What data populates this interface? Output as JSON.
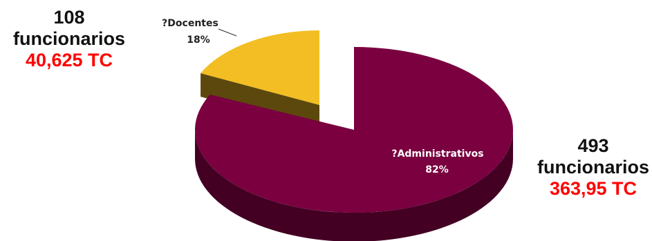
{
  "chart_data": {
    "type": "pie",
    "style": "3d-exploded",
    "slices": [
      {
        "label": "Administrativos",
        "value": 82,
        "display": "82%",
        "color": "#7a0040",
        "label_prefix": "?"
      },
      {
        "label": "Docentes",
        "value": 18,
        "display": "18%",
        "color": "#f2be23",
        "label_prefix": "?"
      }
    ]
  },
  "annotations": {
    "docentes": {
      "count": "108",
      "unit": "funcionarios",
      "tc": "40,625 TC"
    },
    "administrativos": {
      "count": "493",
      "unit": "funcionarios",
      "tc": "363,95 TC"
    }
  }
}
